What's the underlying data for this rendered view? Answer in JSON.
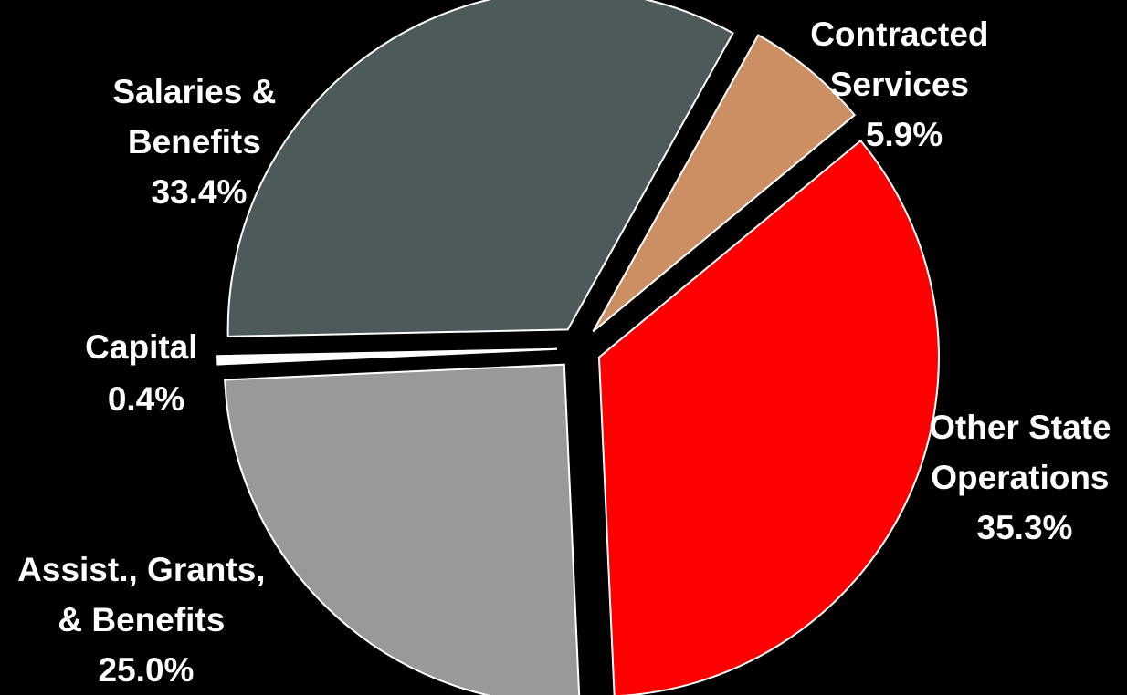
{
  "chart_data": {
    "type": "pie",
    "title": "",
    "slices": [
      {
        "label_lines": [
          "Contracted",
          "Services"
        ],
        "value": 5.9,
        "value_label": "5.9%",
        "color": "#CC8E63"
      },
      {
        "label_lines": [
          "Other State",
          "Operations"
        ],
        "value": 35.3,
        "value_label": "35.3%",
        "color": "#FF0000"
      },
      {
        "label_lines": [
          "Assist., Grants,",
          "& Benefits"
        ],
        "value": 25.0,
        "value_label": "25.0%",
        "color": "#999999"
      },
      {
        "label_lines": [
          "Capital"
        ],
        "value": 0.4,
        "value_label": "0.4%",
        "color": "#FFFFFF"
      },
      {
        "label_lines": [
          "Salaries &",
          "Benefits"
        ],
        "value": 33.4,
        "value_label": "33.4%",
        "color": "#4D5A5A"
      }
    ],
    "legend": "none",
    "start_angle_deg": 29.1,
    "direction": "clockwise",
    "exploded": true
  }
}
